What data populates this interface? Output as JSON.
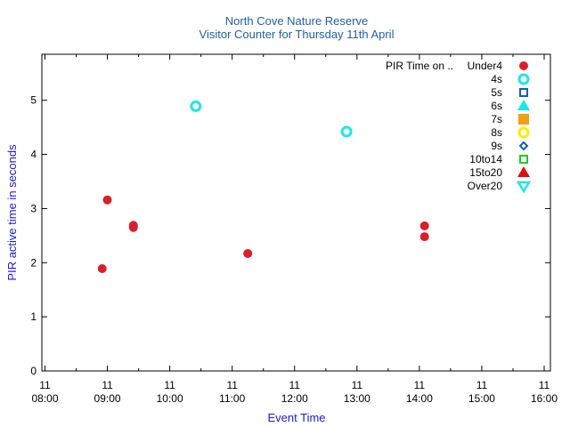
{
  "colors": {
    "title": "#1f5fa8",
    "axis_label": "#1a1ad6",
    "frame": "#000000"
  },
  "chart_data": {
    "type": "scatter",
    "title": "North Cove Nature Reserve",
    "subtitle": "Visitor Counter for Thursday 11th April",
    "xlabel": "Event Time",
    "ylabel": "PIR active time in seconds",
    "x_range": [
      "08:00",
      "16:00"
    ],
    "xlim_hours": [
      7.95,
      16.1
    ],
    "ylim": [
      0,
      5.85
    ],
    "y_ticks": [
      0,
      1,
      2,
      3,
      4,
      5
    ],
    "x_ticks": [
      {
        "day": "11",
        "time": "08:00"
      },
      {
        "day": "11",
        "time": "09:00"
      },
      {
        "day": "11",
        "time": "10:00"
      },
      {
        "day": "11",
        "time": "11:00"
      },
      {
        "day": "11",
        "time": "12:00"
      },
      {
        "day": "11",
        "time": "13:00"
      },
      {
        "day": "11",
        "time": "14:00"
      },
      {
        "day": "11",
        "time": "15:00"
      },
      {
        "day": "11",
        "time": "16:00"
      }
    ],
    "grid": false,
    "legend_position": "top-right",
    "legend_title": "PIR Time on ..",
    "series": [
      {
        "name": "Under4",
        "marker": "filled-circle",
        "color": "#d9202a",
        "points": [
          {
            "x": "08:55",
            "y": 1.89
          },
          {
            "x": "09:00",
            "y": 3.16
          },
          {
            "x": "09:25",
            "y": 2.65
          },
          {
            "x": "09:25",
            "y": 2.69
          },
          {
            "x": "11:15",
            "y": 2.17
          },
          {
            "x": "14:05",
            "y": 2.68
          },
          {
            "x": "14:05",
            "y": 2.48
          }
        ]
      },
      {
        "name": "4s",
        "marker": "open-circle",
        "color": "#18e8ec",
        "points": [
          {
            "x": "10:25",
            "y": 4.89
          },
          {
            "x": "12:50",
            "y": 4.42
          }
        ]
      },
      {
        "name": "5s",
        "marker": "open-square",
        "color": "#1060b0",
        "points": []
      },
      {
        "name": "6s",
        "marker": "filled-triangle-up",
        "color": "#18e8ec",
        "points": []
      },
      {
        "name": "7s",
        "marker": "filled-square",
        "color": "#f0a010",
        "points": []
      },
      {
        "name": "8s",
        "marker": "open-circle",
        "color": "#f4f000",
        "points": []
      },
      {
        "name": "9s",
        "marker": "open-diamond",
        "color": "#1060b0",
        "points": []
      },
      {
        "name": "10to14",
        "marker": "open-square",
        "color": "#18d018",
        "points": []
      },
      {
        "name": "15to20",
        "marker": "filled-triangle-up",
        "color": "#e01010",
        "points": []
      },
      {
        "name": "Over20",
        "marker": "open-triangle-down",
        "color": "#18e8ec",
        "points": []
      }
    ]
  }
}
